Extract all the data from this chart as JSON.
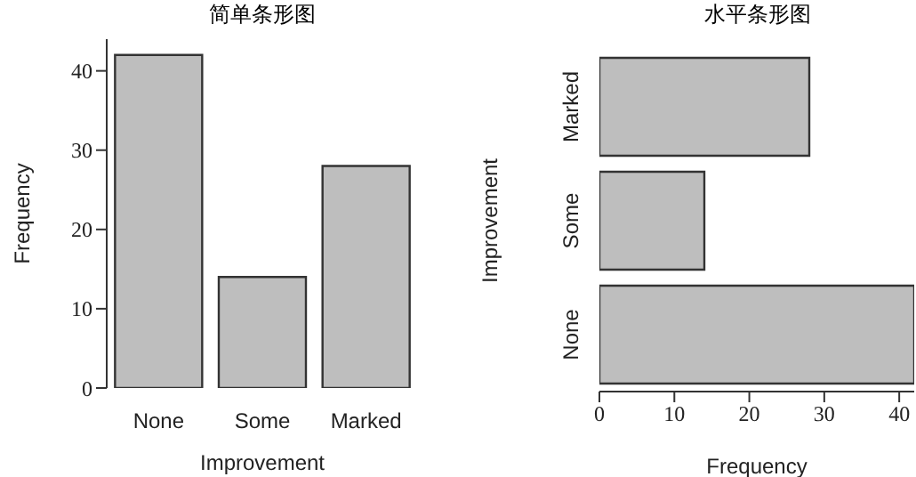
{
  "chart_data": [
    {
      "type": "bar",
      "title": "简单条形图",
      "xlabel": "Improvement",
      "ylabel": "Frequency",
      "categories": [
        "None",
        "Some",
        "Marked"
      ],
      "values": [
        42,
        14,
        28
      ],
      "color": "#bebebe",
      "ylim": [
        0,
        44
      ],
      "yticks": [
        0,
        10,
        20,
        30,
        40
      ]
    },
    {
      "type": "bar",
      "orientation": "horizontal",
      "title": "水平条形图",
      "xlabel": "Frequency",
      "ylabel": "Improvement",
      "categories": [
        "Marked",
        "Some",
        "None"
      ],
      "values": [
        28,
        14,
        42
      ],
      "color": "#bebebe",
      "xlim": [
        0,
        42
      ],
      "xticks": [
        0,
        10,
        20,
        30,
        40
      ]
    }
  ]
}
